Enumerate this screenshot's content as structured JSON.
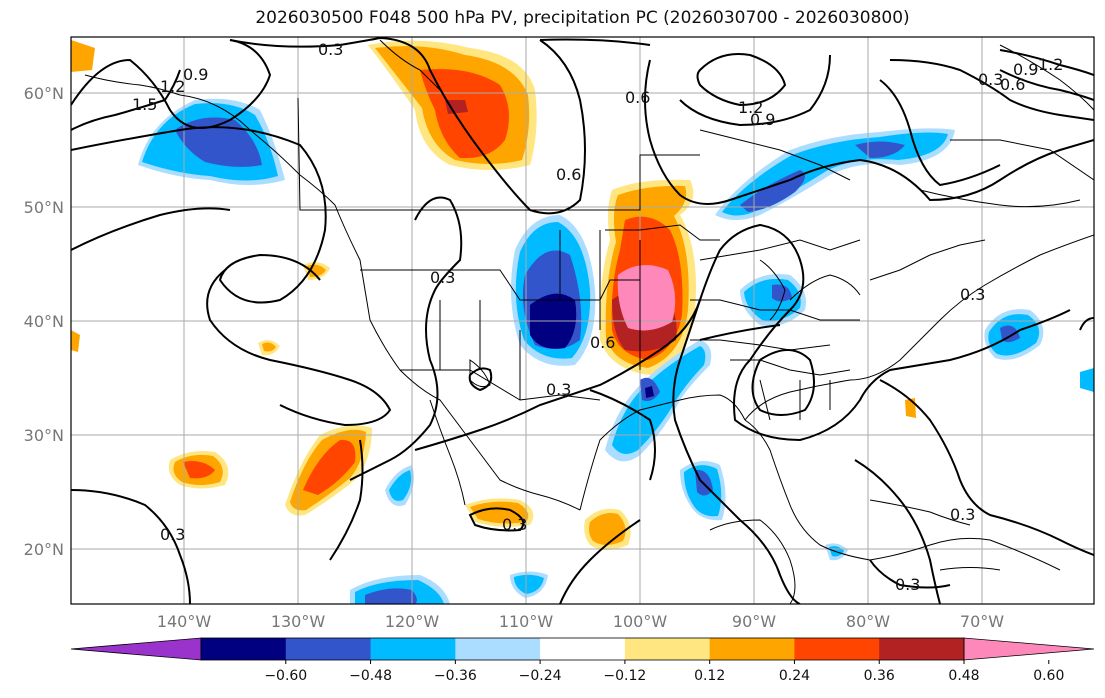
{
  "title": "2026030500 F048 500 hPa PV, precipitation PC (2026030700 - 2026030800)",
  "lat_labels": [
    "60°N",
    "50°N",
    "40°N",
    "30°N",
    "20°N"
  ],
  "lon_labels": [
    "140°W",
    "130°W",
    "120°W",
    "110°W",
    "100°W",
    "90°W",
    "80°W",
    "70°W"
  ],
  "contour_labels": [
    "0.3",
    "0.9",
    "1.2",
    "1.5",
    "0.6",
    "1.2",
    "0.9",
    "0.6",
    "0.9",
    "1.2",
    "0.6",
    "0.3",
    "0.3",
    "0.6",
    "0.3",
    "0.3",
    "0.3",
    "0.3",
    "0.3",
    "0.3"
  ],
  "colorbar": {
    "ticks": [
      "-0.60",
      "-0.48",
      "-0.36",
      "-0.24",
      "-0.12",
      "0.12",
      "0.24",
      "0.36",
      "0.48",
      "0.60"
    ],
    "colors": [
      "#9933cc",
      "#000080",
      "#3355cc",
      "#00bbff",
      "#aaddff",
      "#ffffff",
      "#ffe680",
      "#ffa500",
      "#ff4500",
      "#b22222",
      "#ff88bb"
    ]
  },
  "colors": {
    "grid": "#aaaaaa",
    "coast": "#000000",
    "contour": "#000000"
  }
}
